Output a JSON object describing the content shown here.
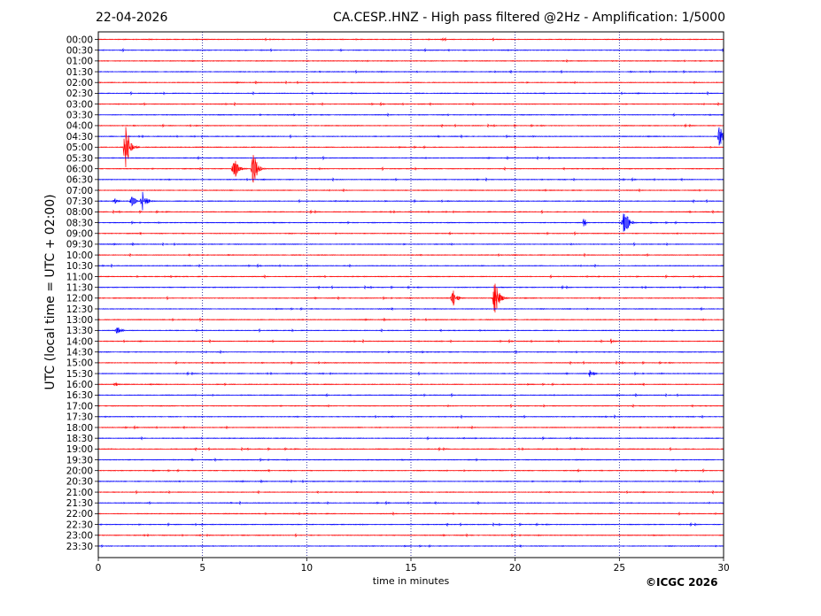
{
  "header": {
    "date": "22-04-2026",
    "title": "CA.CESP..HNZ - High pass filtered @2Hz - Amplification: 1/5000"
  },
  "footer": {
    "copyright": "©ICGC 2026"
  },
  "colors": {
    "red": "#ff0000",
    "blue": "#0000ff",
    "grid": "#00008b",
    "axis": "#000000"
  },
  "chart_data": {
    "type": "line",
    "xlabel": "time in minutes",
    "ylabel": "UTC (local time = UTC + 02:00)",
    "xlim": [
      0,
      30
    ],
    "x_ticks": [
      0,
      5,
      10,
      15,
      20,
      25,
      30
    ],
    "vertical_gridlines_at": [
      5,
      10,
      15,
      20,
      25
    ],
    "rows": [
      "00:00",
      "00:30",
      "01:00",
      "01:30",
      "02:00",
      "02:30",
      "03:00",
      "03:30",
      "04:00",
      "04:30",
      "05:00",
      "05:30",
      "06:00",
      "06:30",
      "07:00",
      "07:30",
      "08:00",
      "08:30",
      "09:00",
      "09:30",
      "10:00",
      "10:30",
      "11:00",
      "11:30",
      "12:00",
      "12:30",
      "13:00",
      "13:30",
      "14:00",
      "14:30",
      "15:00",
      "15:30",
      "16:00",
      "16:30",
      "17:00",
      "17:30",
      "18:00",
      "18:30",
      "19:00",
      "19:30",
      "20:00",
      "20:30",
      "21:00",
      "21:30",
      "22:00",
      "22:30",
      "23:00",
      "23:30"
    ],
    "row_colors": "alternating red (even rows) / blue (odd rows)",
    "events": [
      {
        "row": "05:00",
        "minute": 1.3,
        "amplitude": 1.6
      },
      {
        "row": "04:30",
        "minute": 29.8,
        "amplitude": 0.7
      },
      {
        "row": "06:00",
        "minute": 6.5,
        "amplitude": 0.8
      },
      {
        "row": "06:00",
        "minute": 7.4,
        "amplitude": 1.2
      },
      {
        "row": "07:30",
        "minute": 0.8,
        "amplitude": 0.15
      },
      {
        "row": "07:30",
        "minute": 1.6,
        "amplitude": 0.3
      },
      {
        "row": "07:30",
        "minute": 2.1,
        "amplitude": 0.6
      },
      {
        "row": "08:30",
        "minute": 23.3,
        "amplitude": 0.25
      },
      {
        "row": "08:30",
        "minute": 25.2,
        "amplitude": 1.1
      },
      {
        "row": "12:00",
        "minute": 17.0,
        "amplitude": 0.6
      },
      {
        "row": "12:00",
        "minute": 19.0,
        "amplitude": 1.2
      },
      {
        "row": "13:30",
        "minute": 0.9,
        "amplitude": 0.25
      },
      {
        "row": "14:00",
        "minute": 24.6,
        "amplitude": 0.15
      },
      {
        "row": "15:30",
        "minute": 23.6,
        "amplitude": 0.25
      },
      {
        "row": "16:00",
        "minute": 0.8,
        "amplitude": 0.1
      }
    ]
  }
}
